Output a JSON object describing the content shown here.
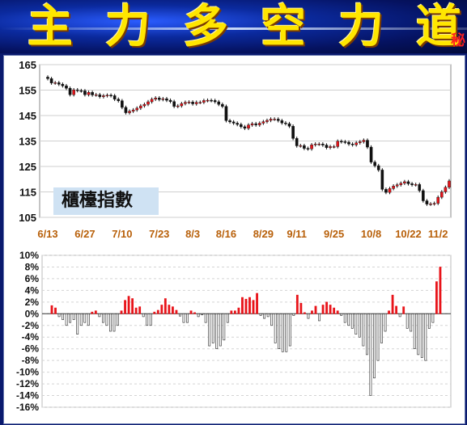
{
  "banner": {
    "chars": [
      "主",
      "力",
      "多",
      "空",
      "力",
      "道"
    ],
    "tag": "秘"
  },
  "colors": {
    "up": "#e8141a",
    "down": "#111111",
    "gain": "#e8141a",
    "loss": "#555555",
    "date": "#b8600a"
  },
  "chart_data": [
    {
      "type": "candlestick",
      "series_label": "櫃檯指數",
      "y_ticks": [
        "165",
        "155",
        "145",
        "135",
        "125",
        "115",
        "105"
      ],
      "ylim": [
        105,
        165
      ],
      "x_ticks": [
        "6/13",
        "6/27",
        "7/10",
        "7/23",
        "8/3",
        "8/16",
        "8/29",
        "9/11",
        "9/25",
        "10/8",
        "10/22",
        "11/2"
      ],
      "x_tick_index": [
        0,
        10,
        20,
        30,
        39,
        48,
        58,
        67,
        77,
        87,
        97,
        105
      ],
      "values": [
        159.5,
        157.8,
        157.9,
        157.3,
        156.7,
        155.7,
        153.2,
        155.1,
        154.8,
        154.7,
        153.2,
        154.1,
        153.1,
        153.2,
        152.4,
        152.8,
        153.0,
        152.8,
        151.4,
        150.8,
        148.2,
        146.1,
        146.7,
        147.2,
        147.9,
        148.8,
        149.4,
        150.4,
        151.4,
        151.9,
        151.3,
        151.6,
        151.0,
        150.5,
        148.6,
        148.8,
        149.7,
        150.2,
        150.3,
        149.6,
        150.2,
        150.2,
        150.9,
        151.0,
        150.9,
        150.4,
        149.4,
        148.6,
        143.0,
        142.5,
        142.0,
        141.5,
        140.6,
        140.0,
        141.3,
        141.8,
        141.3,
        142.0,
        142.6,
        143.1,
        143.6,
        143.6,
        143.0,
        142.1,
        141.8,
        140.8,
        136.0,
        133.1,
        133.2,
        132.1,
        131.9,
        133.5,
        133.8,
        133.8,
        133.4,
        132.4,
        132.8,
        132.8,
        134.9,
        134.7,
        134.5,
        133.8,
        133.5,
        134.3,
        134.7,
        135.3,
        132.6,
        126.7,
        125.3,
        123.6,
        116.0,
        114.8,
        116.3,
        117.3,
        117.8,
        118.4,
        119.0,
        118.2,
        117.8,
        117.9,
        115.5,
        111.5,
        110.2,
        110.3,
        110.5,
        112.9,
        115.0,
        116.8,
        119.3
      ],
      "change_pct": [
        1.4,
        1.0,
        -0.5,
        -1.0,
        -2.0,
        -1.5,
        -1.0,
        -3.5,
        -2.0,
        -1.5,
        -2.0,
        0.3,
        0.5,
        -0.5,
        -1.5,
        -2.0,
        -3.0,
        -3.0,
        -2.0,
        0.5,
        2.3,
        3.0,
        2.6,
        1.0,
        1.2,
        -0.5,
        -2.0,
        -2.0,
        0.3,
        0.6,
        1.5,
        2.6,
        1.5,
        1.2,
        0.6,
        -0.4,
        -1.5,
        -1.5,
        0.5,
        0.2,
        -0.5,
        -0.2,
        -1.5,
        -5.5,
        -5.0,
        -6.0,
        -5.5,
        -4.5,
        -1.5,
        0.5,
        0.5,
        1.0,
        2.8,
        2.5,
        2.8,
        2.3,
        3.5,
        -0.3,
        -0.8,
        -0.5,
        -2.0,
        -5.0,
        -6.0,
        -6.5,
        -6.5,
        -5.5,
        -0.3,
        3.2,
        1.8,
        0.2,
        -0.8,
        0.5,
        1.3,
        -1.2,
        1.5,
        2.0,
        1.5,
        1.0,
        0.5,
        -0.3,
        -1.5,
        -2.0,
        -2.5,
        -3.5,
        -4.0,
        -5.5,
        -7.0,
        -14.0,
        -11.0,
        -8.0,
        -5.0,
        -3.0,
        0.5,
        3.2,
        1.3,
        -0.5,
        1.2,
        -2.5,
        -3.0,
        -6.0,
        -7.0,
        -7.5,
        -8.0,
        -2.5,
        -1.5,
        5.5,
        8.0
      ],
      "pct_ticks": [
        "10%",
        "8%",
        "6%",
        "4%",
        "2%",
        "0%",
        "-2%",
        "-4%",
        "-6%",
        "-8%",
        "-10%",
        "-12%",
        "-14%",
        "-16%"
      ],
      "pct_range": [
        -16,
        10
      ]
    }
  ]
}
